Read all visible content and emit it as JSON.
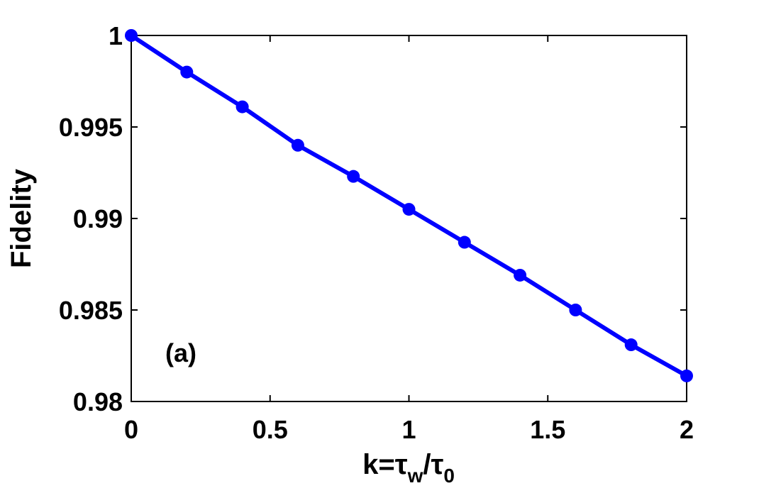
{
  "chart_data": {
    "type": "line",
    "x": [
      0,
      0.2,
      0.4,
      0.6,
      0.8,
      1.0,
      1.2,
      1.4,
      1.6,
      1.8,
      2.0
    ],
    "series": [
      {
        "values": [
          1.0,
          0.998,
          0.9961,
          0.994,
          0.9923,
          0.9905,
          0.9887,
          0.9869,
          0.985,
          0.9831,
          0.9814
        ],
        "color": "#0000ff",
        "marker": "circle"
      }
    ],
    "title": "",
    "xlabel": {
      "prefix": "k=",
      "tau1": "τ",
      "sub1": "w",
      "slash": "/",
      "tau2": "τ",
      "sub2": "0"
    },
    "ylabel": "Fidelity",
    "xlim": [
      0,
      2
    ],
    "ylim": [
      0.98,
      1.0
    ],
    "xticks": [
      "0",
      "0.5",
      "1",
      "1.5",
      "2"
    ],
    "xtick_values": [
      0,
      0.5,
      1,
      1.5,
      2
    ],
    "yticks": [
      "0.98",
      "0.985",
      "0.99",
      "0.995",
      "1"
    ],
    "ytick_values": [
      0.98,
      0.985,
      0.99,
      0.995,
      1.0
    ],
    "annotation": "(a)",
    "grid": false,
    "legend": "none"
  }
}
